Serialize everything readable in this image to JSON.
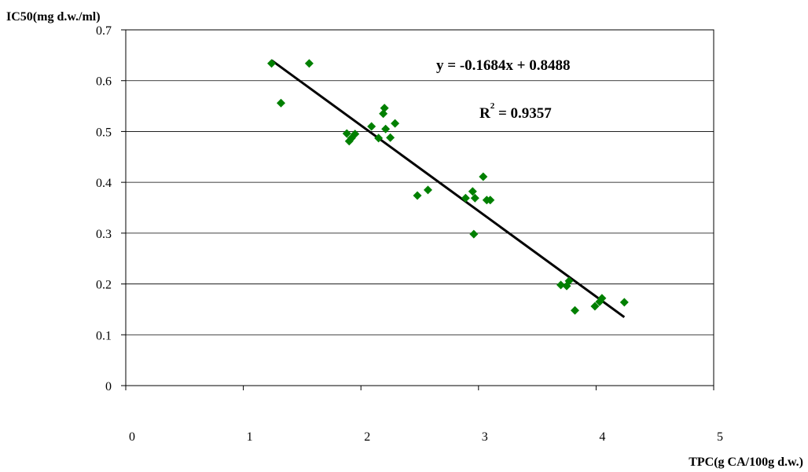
{
  "chart_data": {
    "type": "scatter",
    "x_label": "TPC(g CA/100g d.w.)",
    "y_label": "IC50(mg d.w./ml)",
    "x": [
      1.24,
      1.32,
      1.56,
      1.88,
      1.9,
      1.92,
      1.95,
      2.09,
      2.15,
      2.19,
      2.2,
      2.21,
      2.25,
      2.29,
      2.48,
      2.57,
      2.89,
      2.95,
      2.97,
      2.96,
      3.04,
      3.07,
      3.1,
      3.7,
      3.75,
      3.77,
      3.82,
      3.99,
      4.03,
      4.05,
      4.24
    ],
    "values": [
      0.634,
      0.556,
      0.634,
      0.496,
      0.481,
      0.487,
      0.495,
      0.51,
      0.487,
      0.535,
      0.546,
      0.505,
      0.488,
      0.516,
      0.374,
      0.385,
      0.369,
      0.382,
      0.369,
      0.298,
      0.411,
      0.365,
      0.365,
      0.198,
      0.196,
      0.206,
      0.148,
      0.156,
      0.165,
      0.172,
      0.164
    ],
    "color": "#008000",
    "xlim": [
      0,
      5
    ],
    "xticks": [
      0,
      1,
      2,
      3,
      4,
      5
    ],
    "ylim": [
      0,
      0.7
    ],
    "yticks": [
      0,
      0.1,
      0.2,
      0.3,
      0.4,
      0.5,
      0.6,
      0.7
    ],
    "grid": true,
    "trendline": {
      "equation": "y = -0.1684x + 0.8488",
      "slope": -0.1684,
      "intercept": 0.8488,
      "r_squared": {
        "prefix": "R",
        "exponent": "2",
        "text": " = 0.9357"
      }
    }
  }
}
